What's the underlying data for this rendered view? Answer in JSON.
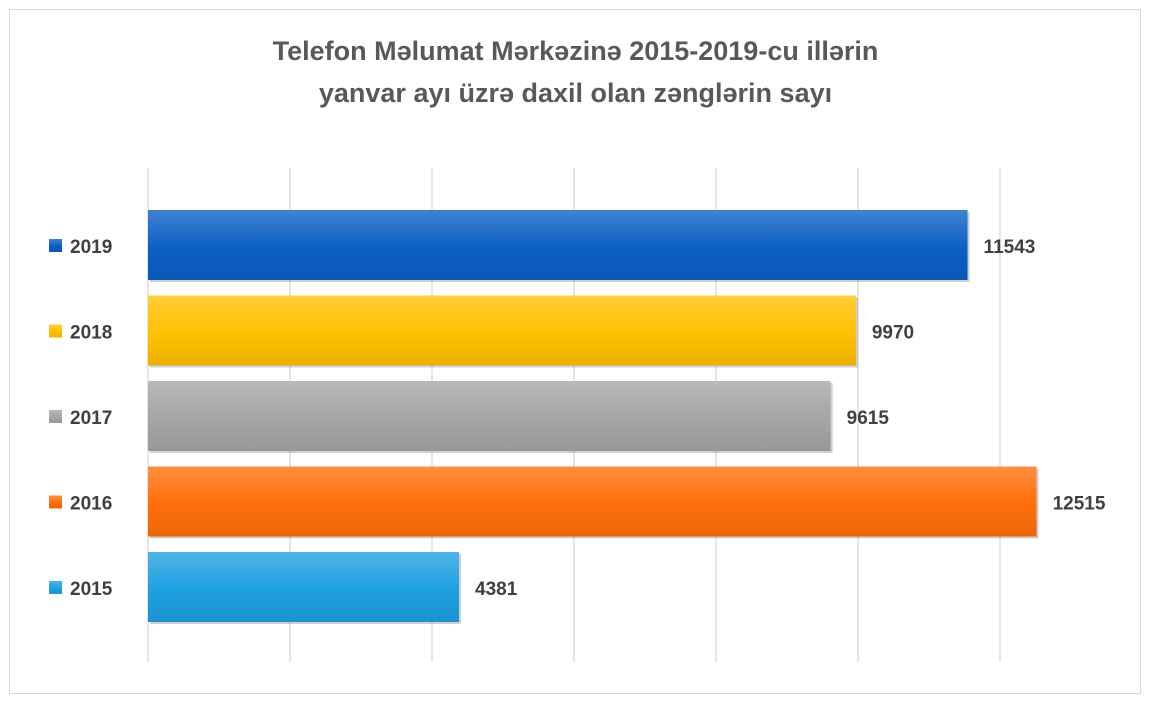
{
  "chart_data": {
    "type": "bar",
    "orientation": "horizontal",
    "title_lines": [
      "Telefon Məlumat Mərkəzinə 2015-2019-cu illərin",
      "yanvar ayı üzrə daxil olan zənglərin sayı"
    ],
    "categories": [
      "2019",
      "2018",
      "2017",
      "2016",
      "2015"
    ],
    "values": [
      11543,
      9970,
      9615,
      12515,
      4381
    ],
    "colors": [
      "#0a5fc4",
      "#ffc000",
      "#a5a5a5",
      "#ff6f0a",
      "#1ea0e0"
    ],
    "xlim": [
      0,
      14000
    ],
    "grid": true,
    "data_labels": true,
    "legend": "left (category keys)"
  }
}
